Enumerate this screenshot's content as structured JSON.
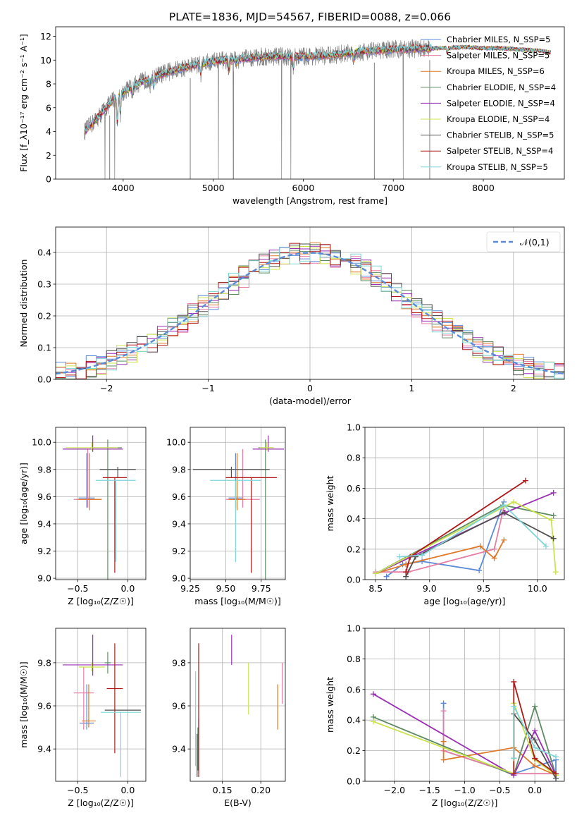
{
  "figure_title": "PLATE=1836, MJD=54567, FIBERID=0088, z=0.066",
  "colors": {
    "chabrier_miles": "#5b8bd8",
    "salpeter_miles": "#e57ea3",
    "kroupa_miles": "#e07a28",
    "chabrier_elodie": "#5e8a64",
    "salpeter_elodie": "#9a2fb4",
    "kroupa_elodie": "#c9e34f",
    "chabrier_stelib": "#4f4f4f",
    "salpeter_stelib": "#b01818",
    "kroupa_stelib": "#7fd6d8",
    "data_spectrum": "#808080",
    "normal_curve": "#5b8bd8"
  },
  "chart_data": [
    {
      "id": "spectrum",
      "type": "line",
      "title": "PLATE=1836, MJD=54567, FIBERID=0088, z=0.066",
      "xlabel": "wavelength [Angstrom, rest frame]",
      "ylabel": "Flux [f_λ10⁻¹⁷ erg cm⁻² s⁻¹ A⁻¹]",
      "xlim": [
        3250,
        8900
      ],
      "ylim": [
        0,
        12.8
      ],
      "xticks": [
        4000,
        5000,
        6000,
        7000,
        8000
      ],
      "yticks": [
        0,
        2,
        4,
        6,
        8,
        10,
        12
      ],
      "grid": false,
      "legend_position": "top-right",
      "legend": [
        "Chabrier MILES, N_SSP=5",
        "Salpeter MILES, N_SSP=5",
        "Kroupa MILES, N_SSP=6",
        "Chabrier ELODIE, N_SSP=4",
        "Salpeter ELODIE, N_SSP=4",
        "Kroupa ELODIE, N_SSP=4",
        "Chabrier STELIB, N_SSP=5",
        "Salpeter STELIB, N_SSP=4",
        "Kroupa STELIB, N_SSP=5"
      ],
      "continuum": {
        "x": [
          3570,
          3700,
          3900,
          4100,
          4300,
          4500,
          4800,
          5000,
          5300,
          5600,
          6000,
          6300,
          6600,
          7000,
          7400,
          7500,
          7800,
          8000,
          8200,
          8400,
          8600,
          8800
        ],
        "y": [
          4.0,
          5.0,
          6.8,
          7.8,
          8.5,
          9.0,
          9.6,
          9.9,
          10.1,
          10.3,
          10.3,
          10.4,
          10.7,
          10.9,
          11.0,
          11.0,
          11.1,
          11.0,
          11.0,
          10.9,
          10.8,
          10.6
        ]
      },
      "model_xrange": [
        3570,
        8750
      ],
      "data_xrange": [
        3570,
        7420
      ]
    },
    {
      "id": "residuals",
      "type": "histogram",
      "xlabel": "(data-model)/error",
      "ylabel": "Normed distribution",
      "xlim": [
        -2.5,
        2.5
      ],
      "ylim": [
        0,
        0.48
      ],
      "xticks": [
        -2,
        -1,
        0,
        1,
        2
      ],
      "yticks": [
        0.0,
        0.1,
        0.2,
        0.3,
        0.4
      ],
      "grid": true,
      "legend_position": "top-right",
      "legend": [
        "𝒩(0,1)"
      ],
      "bin_width": 0.1,
      "normal_mean": 0,
      "normal_sigma": 1
    },
    {
      "id": "age_vs_Z",
      "type": "errorbar",
      "xlabel": "Z [log₁₀(Z/Z☉)]",
      "ylabel": "age  [log₁₀(age/yr)]",
      "xlim": [
        -0.72,
        0.18
      ],
      "ylim": [
        8.99,
        10.11
      ],
      "xticks": [
        -0.5,
        0.0
      ],
      "yticks": [
        9.0,
        9.2,
        9.4,
        9.6,
        9.8,
        10.0
      ],
      "grid": true,
      "points": [
        {
          "series": "chabrier_miles",
          "x": -0.41,
          "xerr": [
            0.08,
            0.08
          ],
          "y": 9.59,
          "yerr": [
            0.07,
            0.33
          ]
        },
        {
          "series": "salpeter_miles",
          "x": -0.4,
          "xerr": [
            0.14,
            0.14
          ],
          "y": 9.58,
          "yerr": [
            0.06,
            0.37
          ]
        },
        {
          "series": "kroupa_miles",
          "x": -0.38,
          "xerr": [
            0.12,
            0.12
          ],
          "y": 9.58,
          "yerr": [
            0.08,
            0.34
          ]
        },
        {
          "series": "chabrier_elodie",
          "x": -0.2,
          "xerr": [
            0.14,
            0.14
          ],
          "y": 9.96,
          "yerr": [
            0.97,
            0.06
          ]
        },
        {
          "series": "salpeter_elodie",
          "x": -0.35,
          "xerr": [
            0.3,
            0.3
          ],
          "y": 9.95,
          "yerr": [
            0.02,
            0.1
          ]
        },
        {
          "series": "kroupa_elodie",
          "x": -0.36,
          "xerr": [
            0.26,
            0.26
          ],
          "y": 9.96,
          "yerr": [
            0.02,
            0.04
          ]
        },
        {
          "series": "chabrier_stelib",
          "x": -0.1,
          "xerr": [
            0.18,
            0.18
          ],
          "y": 9.8,
          "yerr": [
            0.06,
            0.02
          ]
        },
        {
          "series": "salpeter_stelib",
          "x": -0.13,
          "xerr": [
            0.12,
            0.12
          ],
          "y": 9.74,
          "yerr": [
            0.7,
            0.0
          ]
        },
        {
          "series": "kroupa_stelib",
          "x": -0.12,
          "xerr": [
            0.2,
            0.2
          ],
          "y": 9.72,
          "yerr": [
            0.6,
            0.0
          ]
        }
      ]
    },
    {
      "id": "age_vs_mass",
      "type": "errorbar",
      "xlabel": "mass [log₁₀(M/M☉)]",
      "ylabel": "",
      "xlim": [
        9.25,
        9.92
      ],
      "ylim": [
        8.99,
        10.11
      ],
      "xticks": [
        9.25,
        9.5,
        9.75
      ],
      "yticks": [
        9.0,
        9.2,
        9.4,
        9.6,
        9.8,
        10.0
      ],
      "grid": true,
      "points": [
        {
          "series": "chabrier_miles",
          "x": 9.57,
          "xerr": [
            0.05,
            0.05
          ],
          "y": 9.59,
          "yerr": [
            0.07,
            0.33
          ]
        },
        {
          "series": "salpeter_miles",
          "x": 9.62,
          "xerr": [
            0.12,
            0.12
          ],
          "y": 9.58,
          "yerr": [
            0.06,
            0.37
          ]
        },
        {
          "series": "kroupa_miles",
          "x": 9.58,
          "xerr": [
            0.06,
            0.06
          ],
          "y": 9.58,
          "yerr": [
            0.08,
            0.34
          ]
        },
        {
          "series": "chabrier_elodie",
          "x": 9.78,
          "xerr": [
            0.05,
            0.05
          ],
          "y": 9.96,
          "yerr": [
            0.97,
            0.06
          ]
        },
        {
          "series": "salpeter_elodie",
          "x": 9.8,
          "xerr": [
            0.11,
            0.11
          ],
          "y": 9.95,
          "yerr": [
            0.02,
            0.1
          ]
        },
        {
          "series": "kroupa_elodie",
          "x": 9.79,
          "xerr": [
            0.05,
            0.05
          ],
          "y": 9.96,
          "yerr": [
            0.02,
            0.04
          ]
        },
        {
          "series": "chabrier_stelib",
          "x": 9.54,
          "xerr": [
            0.27,
            0.27
          ],
          "y": 9.8,
          "yerr": [
            0.06,
            0.02
          ]
        },
        {
          "series": "salpeter_stelib",
          "x": 9.68,
          "xerr": [
            0.18,
            0.18
          ],
          "y": 9.74,
          "yerr": [
            0.7,
            0.0
          ]
        },
        {
          "series": "kroupa_stelib",
          "x": 9.57,
          "xerr": [
            0.18,
            0.18
          ],
          "y": 9.72,
          "yerr": [
            0.6,
            0.0
          ]
        }
      ]
    },
    {
      "id": "weight_vs_age",
      "type": "line",
      "xlabel": "age  [log₁₀(age/yr)]",
      "ylabel": "mass weight",
      "xlim": [
        8.4,
        10.25
      ],
      "ylim": [
        0,
        1.0
      ],
      "xticks": [
        8.5,
        9.0,
        9.5,
        10.0
      ],
      "yticks": [
        0.0,
        0.2,
        0.4,
        0.6,
        0.8,
        1.0
      ],
      "grid": true,
      "series": [
        {
          "name": "chabrier_miles",
          "x": [
            8.6,
            8.75,
            8.93,
            9.46,
            9.69
          ],
          "y": [
            0.02,
            0.1,
            0.12,
            0.06,
            0.51
          ]
        },
        {
          "name": "salpeter_miles",
          "x": [
            8.5,
            8.8,
            9.6,
            9.69
          ],
          "y": [
            0.05,
            0.05,
            0.2,
            0.48
          ]
        },
        {
          "name": "kroupa_miles",
          "x": [
            8.5,
            8.78,
            9.47,
            9.6,
            9.69
          ],
          "y": [
            0.04,
            0.1,
            0.22,
            0.14,
            0.26
          ]
        },
        {
          "name": "chabrier_elodie",
          "x": [
            8.5,
            9.68,
            10.15
          ],
          "y": [
            0.04,
            0.49,
            0.42
          ]
        },
        {
          "name": "salpeter_elodie",
          "x": [
            8.5,
            9.7,
            10.15
          ],
          "y": [
            0.04,
            0.44,
            0.57
          ]
        },
        {
          "name": "kroupa_elodie",
          "x": [
            8.5,
            9.78,
            10.13,
            10.17
          ],
          "y": [
            0.04,
            0.51,
            0.39,
            0.05
          ]
        },
        {
          "name": "chabrier_stelib",
          "x": [
            8.78,
            8.87,
            9.69,
            10.15
          ],
          "y": [
            0.02,
            0.15,
            0.44,
            0.27
          ]
        },
        {
          "name": "salpeter_stelib",
          "x": [
            8.78,
            8.82,
            9.89
          ],
          "y": [
            0.05,
            0.15,
            0.65
          ]
        },
        {
          "name": "kroupa_stelib",
          "x": [
            8.72,
            8.93,
            9.69,
            10.08
          ],
          "y": [
            0.15,
            0.16,
            0.49,
            0.22
          ]
        }
      ]
    },
    {
      "id": "mass_vs_Z",
      "type": "errorbar",
      "xlabel": "Z [log₁₀(Z/Z☉)]",
      "ylabel": "mass [log₁₀(M/M☉)]",
      "xlim": [
        -0.72,
        0.18
      ],
      "ylim": [
        9.25,
        9.96
      ],
      "xticks": [
        -0.5,
        0.0
      ],
      "yticks": [
        9.4,
        9.6,
        9.8
      ],
      "grid": true,
      "points": [
        {
          "series": "chabrier_miles",
          "x": -0.41,
          "xerr": [
            0.07,
            0.07
          ],
          "y": 9.52,
          "yerr": [
            0.03,
            0.18
          ]
        },
        {
          "series": "salpeter_miles",
          "x": -0.44,
          "xerr": [
            0.1,
            0.1
          ],
          "y": 9.66,
          "yerr": [
            0.17,
            0.12
          ]
        },
        {
          "series": "kroupa_miles",
          "x": -0.39,
          "xerr": [
            0.07,
            0.07
          ],
          "y": 9.53,
          "yerr": [
            0.03,
            0.17
          ]
        },
        {
          "series": "chabrier_elodie",
          "x": -0.2,
          "xerr": [
            0.03,
            0.03
          ],
          "y": 9.8,
          "yerr": [
            0.05,
            0.05
          ]
        },
        {
          "series": "salpeter_elodie",
          "x": -0.35,
          "xerr": [
            0.3,
            0.3
          ],
          "y": 9.79,
          "yerr": [
            0.05,
            0.14
          ]
        },
        {
          "series": "kroupa_elodie",
          "x": -0.36,
          "xerr": [
            0.13,
            0.13
          ],
          "y": 9.78,
          "yerr": [
            0.02,
            0.02
          ]
        },
        {
          "series": "chabrier_stelib",
          "x": -0.05,
          "xerr": [
            0.18,
            0.18
          ],
          "y": 9.58,
          "yerr": [
            0.0,
            0.0
          ]
        },
        {
          "series": "salpeter_stelib",
          "x": -0.13,
          "xerr": [
            0.08,
            0.08
          ],
          "y": 9.68,
          "yerr": [
            0.3,
            0.21
          ]
        },
        {
          "series": "kroupa_stelib",
          "x": -0.07,
          "xerr": [
            0.2,
            0.2
          ],
          "y": 9.57,
          "yerr": [
            0.3,
            0.0
          ]
        }
      ]
    },
    {
      "id": "mass_vs_ebv",
      "type": "errorbar",
      "xlabel": "E(B-V)",
      "ylabel": "",
      "xlim": [
        0.108,
        0.232
      ],
      "ylim": [
        9.25,
        9.96
      ],
      "xticks": [
        0.15,
        0.2
      ],
      "yticks": [
        9.4,
        9.6,
        9.8
      ],
      "grid": true,
      "points": [
        {
          "series": "chabrier_miles",
          "x": 0.119,
          "xerr": [
            0,
            0
          ],
          "y": 9.52,
          "yerr": [
            0.02,
            0.02
          ]
        },
        {
          "series": "salpeter_miles",
          "x": 0.228,
          "xerr": [
            0,
            0
          ],
          "y": 9.7,
          "yerr": [
            0.09,
            0.1
          ]
        },
        {
          "series": "kroupa_miles",
          "x": 0.222,
          "xerr": [
            0,
            0
          ],
          "y": 9.6,
          "yerr": [
            0.11,
            0.1
          ]
        },
        {
          "series": "chabrier_elodie",
          "x": 0.118,
          "xerr": [
            0,
            0
          ],
          "y": 9.4,
          "yerr": [
            0.1,
            0.1
          ]
        },
        {
          "series": "salpeter_elodie",
          "x": 0.162,
          "xerr": [
            0,
            0
          ],
          "y": 9.86,
          "yerr": [
            0.07,
            0.07
          ]
        },
        {
          "series": "kroupa_elodie",
          "x": 0.184,
          "xerr": [
            0,
            0
          ],
          "y": 9.68,
          "yerr": [
            0.12,
            0.12
          ]
        },
        {
          "series": "chabrier_stelib",
          "x": 0.117,
          "xerr": [
            0,
            0
          ],
          "y": 9.37,
          "yerr": [
            0.1,
            0.1
          ]
        },
        {
          "series": "salpeter_stelib",
          "x": 0.119,
          "xerr": [
            0,
            0
          ],
          "y": 9.58,
          "yerr": [
            0.31,
            0.31
          ]
        },
        {
          "series": "kroupa_stelib",
          "x": 0.115,
          "xerr": [
            0,
            0
          ],
          "y": 9.54,
          "yerr": [
            0.22,
            0.22
          ]
        }
      ]
    },
    {
      "id": "weight_vs_Z",
      "type": "line",
      "xlabel": "Z [log₁₀(Z/Z☉)]",
      "ylabel": "mass weight",
      "xlim": [
        -2.42,
        0.42
      ],
      "ylim": [
        0,
        1.0
      ],
      "xticks": [
        -2.0,
        -1.5,
        -1.0,
        -0.5,
        0.0
      ],
      "yticks": [
        0.0,
        0.2,
        0.4,
        0.6,
        0.8,
        1.0
      ],
      "grid": true,
      "series": [
        {
          "name": "chabrier_miles",
          "x": [
            -1.3,
            -1.3,
            -0.3,
            0.3,
            0.3
          ],
          "y": [
            0.51,
            0.2,
            0.05,
            0.14,
            0.02
          ]
        },
        {
          "name": "salpeter_miles",
          "x": [
            -1.3,
            -1.3,
            -0.3,
            0.3
          ],
          "y": [
            0.46,
            0.2,
            0.05,
            0.05
          ]
        },
        {
          "name": "kroupa_miles",
          "x": [
            -1.3,
            -1.3,
            -0.3,
            0.0,
            0.3
          ],
          "y": [
            0.26,
            0.14,
            0.22,
            0.1,
            0.04
          ]
        },
        {
          "name": "chabrier_elodie",
          "x": [
            -2.3,
            -0.3,
            0.0,
            0.3
          ],
          "y": [
            0.42,
            0.04,
            0.49,
            0.04
          ]
        },
        {
          "name": "salpeter_elodie",
          "x": [
            -2.3,
            -0.3,
            0.0,
            0.3
          ],
          "y": [
            0.57,
            0.04,
            0.33,
            0.04
          ]
        },
        {
          "name": "kroupa_elodie",
          "x": [
            -2.3,
            -0.3,
            -0.3,
            0.0,
            0.3
          ],
          "y": [
            0.39,
            0.05,
            0.51,
            0.14,
            0.04
          ]
        },
        {
          "name": "chabrier_stelib",
          "x": [
            -0.3,
            -0.3,
            0.0,
            0.3
          ],
          "y": [
            0.15,
            0.44,
            0.27,
            0.02
          ]
        },
        {
          "name": "salpeter_stelib",
          "x": [
            -0.3,
            -0.3,
            0.0,
            0.3
          ],
          "y": [
            0.05,
            0.65,
            0.15,
            0.05
          ]
        },
        {
          "name": "kroupa_stelib",
          "x": [
            -0.3,
            -0.3,
            0.0,
            0.3
          ],
          "y": [
            0.15,
            0.49,
            0.22,
            0.16
          ]
        }
      ]
    }
  ]
}
